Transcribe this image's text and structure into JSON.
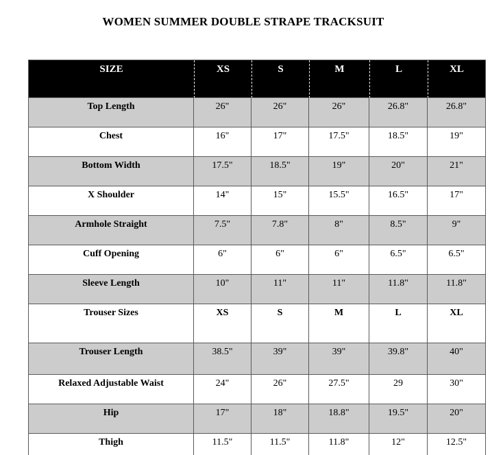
{
  "page": {
    "title": "WOMEN SUMMER DOUBLE STRAPE TRACKSUIT"
  },
  "colors": {
    "header_bg": "#000000",
    "header_text": "#ffffff",
    "shaded_row_bg": "#cccccc",
    "plain_row_bg": "#ffffff",
    "border": "#595959"
  },
  "size_chart": {
    "header": {
      "label": "SIZE",
      "sizes": [
        "XS",
        "S",
        "M",
        "L",
        "XL"
      ]
    },
    "rows": [
      {
        "label": "Top Length",
        "values": [
          "26\"",
          "26\"",
          "26\"",
          "26.8\"",
          "26.8\""
        ]
      },
      {
        "label": "Chest",
        "values": [
          "16\"",
          "17\"",
          "17.5\"",
          "18.5\"",
          "19\""
        ]
      },
      {
        "label": "Bottom Width",
        "values": [
          "17.5\"",
          "18.5\"",
          "19\"",
          "20\"",
          "21\""
        ]
      },
      {
        "label": "X Shoulder",
        "values": [
          "14\"",
          "15\"",
          "15.5\"",
          "16.5\"",
          "17\""
        ]
      },
      {
        "label": "Armhole Straight",
        "values": [
          "7.5\"",
          "7.8\"",
          "8\"",
          "8.5\"",
          "9\""
        ]
      },
      {
        "label": "Cuff Opening",
        "values": [
          "6\"",
          "6\"",
          "6\"",
          "6.5\"",
          "6.5\""
        ]
      },
      {
        "label": "Sleeve Length",
        "values": [
          "10\"",
          "11\"",
          "11\"",
          "11.8\"",
          "11.8\""
        ]
      },
      {
        "label": "Trouser Sizes",
        "values": [
          "XS",
          "S",
          "M",
          "L",
          "XL"
        ]
      },
      {
        "label": "Trouser Length",
        "values": [
          "38.5\"",
          "39\"",
          "39\"",
          "39.8\"",
          "40\""
        ]
      },
      {
        "label": "Relaxed Adjustable Waist",
        "values": [
          "24\"",
          "26\"",
          "27.5\"",
          "29",
          "30\""
        ]
      },
      {
        "label": "Hip",
        "values": [
          "17\"",
          "18\"",
          "18.8\"",
          "19.5\"",
          "20\""
        ]
      },
      {
        "label": "Thigh",
        "values": [
          "11.5\"",
          "11.5\"",
          "11.8\"",
          "12\"",
          "12.5\""
        ]
      }
    ]
  }
}
